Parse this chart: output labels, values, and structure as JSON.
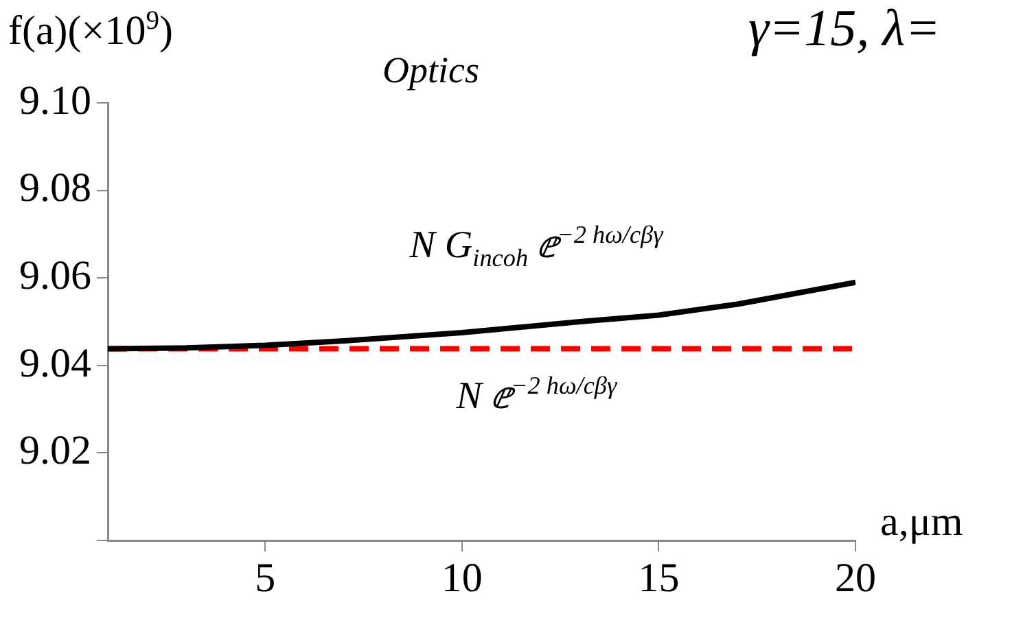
{
  "chart_data": {
    "type": "line",
    "title": "Optics",
    "subtitle": "γ=15, λ=",
    "xlabel": "a,μm",
    "ylabel": "f(a)(×10$^{9}$)",
    "xlim": [
      1,
      20
    ],
    "xticks": [
      5,
      10,
      15,
      20
    ],
    "ylim": [
      9.0,
      9.1
    ],
    "yticks": [
      {
        "value": 9.0,
        "label": null
      },
      9.02,
      9.04,
      9.06,
      9.08,
      {
        "value": 9.1,
        "label": "9.10"
      }
    ],
    "grid": false,
    "legend": false,
    "marker": "none",
    "series": [
      {
        "name": "N G$_{incoh}$ ⅇ$^{−2 hω/cβγ}$",
        "color": "#000000",
        "line_style": "solid",
        "x": [
          1,
          3,
          5,
          7,
          10,
          13,
          15,
          17,
          20
        ],
        "values": [
          9.0438,
          9.044,
          9.0446,
          9.0456,
          9.0475,
          9.05,
          9.0515,
          9.054,
          9.059
        ]
      },
      {
        "name": "N ⅇ$^{−2 hω/cβγ}$",
        "color": "#ff0000",
        "line_style": "dashed",
        "x": [
          1,
          20
        ],
        "values": [
          9.0438,
          9.0438
        ]
      }
    ]
  }
}
